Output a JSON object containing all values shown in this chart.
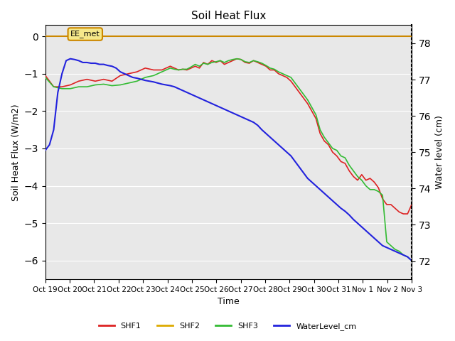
{
  "title": "Soil Heat Flux",
  "ylabel_left": "Soil Heat Flux (W/m2)",
  "ylabel_right": "Water level (cm)",
  "xlabel": "Time",
  "ylim_left": [
    -6.5,
    0.3
  ],
  "ylim_right": [
    71.5,
    78.5
  ],
  "background_color": "#e8e8e8",
  "x_tick_labels": [
    "Oct 19",
    "Oct 20",
    "Oct 21",
    "Oct 22",
    "Oct 23",
    "Oct 24",
    "Oct 25",
    "Oct 26",
    "Oct 27",
    "Oct 28",
    "Oct 29",
    "Oct 30",
    "Oct 31",
    "Nov 1",
    "Nov 2",
    "Nov 3"
  ],
  "ee_met_label": "EE_met",
  "ee_met_color": "#cc8800",
  "legend_items": [
    "SHF1",
    "SHF2",
    "SHF3",
    "WaterLevel_cm"
  ],
  "shf1_color": "#dd2222",
  "shf2_color": "#ddaa00",
  "shf3_color": "#33bb33",
  "water_color": "#2222dd",
  "shf1_x": [
    0,
    1,
    2,
    3,
    4,
    5,
    6,
    7,
    8,
    9,
    10,
    11,
    12,
    13,
    14,
    14.5,
    15,
    15.5,
    16,
    16.5,
    17,
    17.5,
    18,
    18.5,
    19,
    19.5,
    20,
    20.5,
    21,
    21.5,
    22,
    22.5,
    23,
    23.5,
    24,
    24.5,
    25,
    25.5,
    26,
    26.5,
    27,
    27.5,
    28,
    28.5,
    29,
    29.5,
    30,
    30.5,
    31,
    31.5,
    32,
    32.5,
    33,
    33.5,
    34,
    34.5,
    35,
    35.5,
    36,
    36.5,
    37,
    37.5,
    38,
    38.5,
    39,
    39.5,
    40,
    40.5,
    41,
    41.5,
    42,
    42.5,
    43,
    43.5,
    44
  ],
  "shf1_y": [
    -1.05,
    -1.35,
    -1.35,
    -1.3,
    -1.2,
    -1.15,
    -1.2,
    -1.15,
    -1.2,
    -1.05,
    -1.0,
    -0.95,
    -0.85,
    -0.9,
    -0.9,
    -0.85,
    -0.8,
    -0.85,
    -0.9,
    -0.88,
    -0.9,
    -0.85,
    -0.8,
    -0.85,
    -0.7,
    -0.75,
    -0.65,
    -0.7,
    -0.65,
    -0.75,
    -0.7,
    -0.65,
    -0.6,
    -0.62,
    -0.7,
    -0.72,
    -0.65,
    -0.7,
    -0.75,
    -0.8,
    -0.9,
    -0.9,
    -1.0,
    -1.05,
    -1.1,
    -1.2,
    -1.35,
    -1.5,
    -1.65,
    -1.8,
    -2.0,
    -2.2,
    -2.6,
    -2.8,
    -2.9,
    -3.1,
    -3.2,
    -3.35,
    -3.4,
    -3.6,
    -3.75,
    -3.85,
    -3.7,
    -3.85,
    -3.8,
    -3.9,
    -4.05,
    -4.35,
    -4.5,
    -4.5,
    -4.6,
    -4.7,
    -4.75,
    -4.75,
    -4.5
  ],
  "shf3_x": [
    0,
    1,
    2,
    3,
    4,
    5,
    6,
    7,
    8,
    9,
    10,
    11,
    12,
    13,
    14,
    14.5,
    15,
    15.5,
    16,
    16.5,
    17,
    17.5,
    18,
    18.5,
    19,
    19.5,
    20,
    20.5,
    21,
    21.5,
    22,
    22.5,
    23,
    23.5,
    24,
    24.5,
    25,
    25.5,
    26,
    26.5,
    27,
    27.5,
    28,
    28.5,
    29,
    29.5,
    30,
    30.5,
    31,
    31.5,
    32,
    32.5,
    33,
    33.5,
    34,
    34.5,
    35,
    35.5,
    36,
    36.5,
    37,
    37.5,
    38,
    38.5,
    39,
    39.5,
    40,
    40.5,
    41,
    41.5,
    42,
    42.5,
    43,
    43.5,
    44
  ],
  "shf3_y": [
    -1.1,
    -1.35,
    -1.4,
    -1.4,
    -1.35,
    -1.35,
    -1.3,
    -1.28,
    -1.32,
    -1.3,
    -1.25,
    -1.2,
    -1.1,
    -1.05,
    -0.95,
    -0.9,
    -0.85,
    -0.88,
    -0.9,
    -0.88,
    -0.88,
    -0.82,
    -0.75,
    -0.8,
    -0.72,
    -0.75,
    -0.7,
    -0.68,
    -0.65,
    -0.7,
    -0.65,
    -0.62,
    -0.6,
    -0.62,
    -0.68,
    -0.7,
    -0.65,
    -0.68,
    -0.72,
    -0.78,
    -0.85,
    -0.88,
    -0.95,
    -1.0,
    -1.05,
    -1.1,
    -1.25,
    -1.4,
    -1.55,
    -1.7,
    -1.9,
    -2.1,
    -2.5,
    -2.7,
    -2.85,
    -3.0,
    -3.05,
    -3.2,
    -3.25,
    -3.45,
    -3.6,
    -3.75,
    -3.85,
    -4.0,
    -4.1,
    -4.1,
    -4.15,
    -4.25,
    -5.5,
    -5.6,
    -5.7,
    -5.75,
    -5.85,
    -5.9,
    -6.0
  ],
  "water_x": [
    0,
    0.5,
    1,
    1.5,
    2,
    2.5,
    3,
    3.5,
    4,
    4.5,
    5,
    5.5,
    6,
    6.5,
    7,
    7.5,
    8,
    8.5,
    9,
    9.5,
    10,
    10.5,
    11,
    11.5,
    12,
    12.5,
    13,
    13.5,
    14,
    14.5,
    15,
    15.5,
    16,
    16.5,
    17,
    17.5,
    18,
    18.5,
    19,
    19.5,
    20,
    20.5,
    21,
    21.5,
    22,
    22.5,
    23,
    23.5,
    24,
    24.5,
    25,
    25.5,
    26,
    26.5,
    27,
    27.5,
    28,
    28.5,
    29,
    29.5,
    30,
    30.5,
    31,
    31.5,
    32,
    32.5,
    33,
    33.5,
    34,
    34.5,
    35,
    35.5,
    36,
    36.5,
    37,
    37.5,
    38,
    38.5,
    39,
    39.5,
    40,
    40.5,
    41,
    41.5,
    42,
    42.5,
    43,
    43.5,
    44
  ],
  "water_y": [
    -3.05,
    -2.9,
    -2.5,
    -1.5,
    -1.0,
    -0.65,
    -0.6,
    -0.62,
    -0.65,
    -0.7,
    -0.7,
    -0.72,
    -0.72,
    -0.75,
    -0.75,
    -0.78,
    -0.8,
    -0.85,
    -0.95,
    -1.0,
    -1.05,
    -1.1,
    -1.12,
    -1.15,
    -1.18,
    -1.2,
    -1.22,
    -1.25,
    -1.28,
    -1.3,
    -1.32,
    -1.35,
    -1.4,
    -1.45,
    -1.5,
    -1.55,
    -1.6,
    -1.65,
    -1.7,
    -1.75,
    -1.8,
    -1.85,
    -1.9,
    -1.95,
    -2.0,
    -2.05,
    -2.1,
    -2.15,
    -2.2,
    -2.25,
    -2.3,
    -2.38,
    -2.5,
    -2.6,
    -2.7,
    -2.8,
    -2.9,
    -3.0,
    -3.1,
    -3.2,
    -3.35,
    -3.5,
    -3.65,
    -3.8,
    -3.9,
    -4.0,
    -4.1,
    -4.2,
    -4.3,
    -4.4,
    -4.5,
    -4.6,
    -4.68,
    -4.78,
    -4.9,
    -5.0,
    -5.1,
    -5.2,
    -5.3,
    -5.4,
    -5.5,
    -5.6,
    -5.65,
    -5.7,
    -5.75,
    -5.8,
    -5.85,
    -5.9,
    -6.0
  ]
}
